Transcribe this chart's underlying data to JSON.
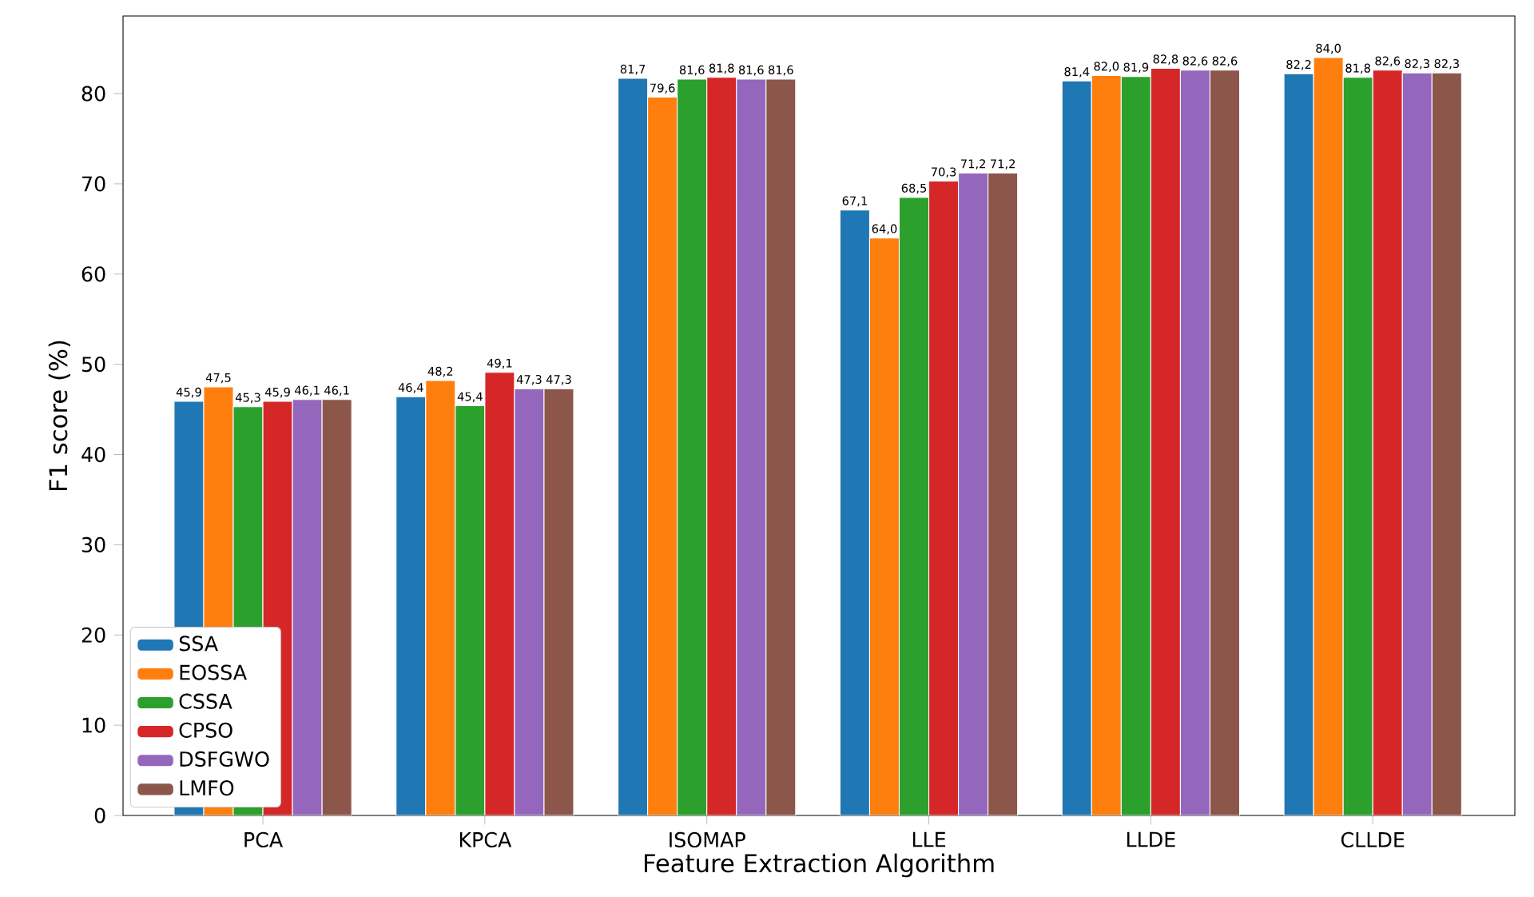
{
  "chart_data": {
    "type": "bar",
    "xlabel": "Feature Extraction Algorithm",
    "ylabel": "F1 score (%)",
    "categories": [
      "PCA",
      "KPCA",
      "ISOMAP",
      "LLE",
      "LLDE",
      "CLLDE"
    ],
    "ylim": [
      0,
      88.6
    ],
    "yticks": [
      0,
      10,
      20,
      30,
      40,
      50,
      60,
      70,
      80
    ],
    "legend": "bottom left",
    "grid": false,
    "series": [
      {
        "name": "SSA",
        "color": "#1f77b4",
        "values": [
          45.9,
          46.4,
          81.7,
          67.1,
          81.4,
          82.2
        ],
        "value_labels": [
          "45,9",
          "46,4",
          "81,7",
          "67,1",
          "81,4",
          "82,2"
        ]
      },
      {
        "name": "EOSSA",
        "color": "#ff7f0e",
        "values": [
          47.5,
          48.2,
          79.6,
          64.0,
          82.0,
          84.0
        ],
        "value_labels": [
          "47,5",
          "48,2",
          "79,6",
          "64,0",
          "82,0",
          "84,0"
        ]
      },
      {
        "name": "CSSA",
        "color": "#2ca02c",
        "values": [
          45.3,
          45.4,
          81.6,
          68.5,
          81.9,
          81.8
        ],
        "value_labels": [
          "45,3",
          "45,4",
          "81,6",
          "68,5",
          "81,9",
          "81,8"
        ]
      },
      {
        "name": "CPSO",
        "color": "#d62728",
        "values": [
          45.9,
          49.1,
          81.8,
          70.3,
          82.8,
          82.6
        ],
        "value_labels": [
          "45,9",
          "49,1",
          "81,8",
          "70,3",
          "82,8",
          "82,6"
        ]
      },
      {
        "name": "DSFGWO",
        "color": "#9467bd",
        "values": [
          46.1,
          47.3,
          81.6,
          71.2,
          82.6,
          82.3
        ],
        "value_labels": [
          "46,1",
          "47,3",
          "81,6",
          "71,2",
          "82,6",
          "82,3"
        ]
      },
      {
        "name": "LMFO",
        "color": "#8c564b",
        "values": [
          46.1,
          47.3,
          81.6,
          71.2,
          82.6,
          82.3
        ],
        "value_labels": [
          "46,1",
          "47,3",
          "81,6",
          "71,2",
          "82,6",
          "82,3"
        ]
      }
    ]
  }
}
